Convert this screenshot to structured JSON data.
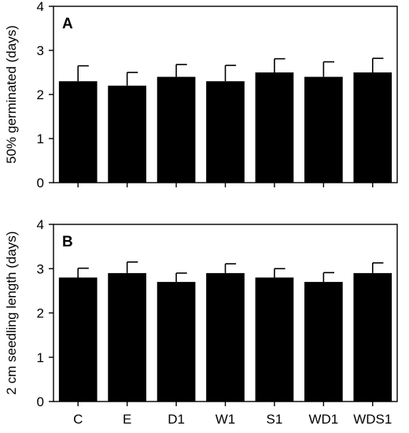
{
  "chart_data": [
    {
      "type": "bar",
      "panel_label": "A",
      "ylabel": "50% germinated (days)",
      "xlabel": "",
      "categories": [
        "C",
        "E",
        "D1",
        "W1",
        "S1",
        "WD1",
        "WDS1"
      ],
      "values": [
        2.3,
        2.2,
        2.4,
        2.3,
        2.5,
        2.4,
        2.5
      ],
      "error_plus": [
        0.35,
        0.3,
        0.28,
        0.36,
        0.31,
        0.34,
        0.32
      ],
      "ylim": [
        0,
        4
      ],
      "yticks": [
        "0",
        "1",
        "2",
        "3",
        "4"
      ],
      "show_xtick_labels": false,
      "bar_color": "#000000",
      "grid": false
    },
    {
      "type": "bar",
      "panel_label": "B",
      "ylabel": "2 cm seedling length (days)",
      "xlabel": "",
      "categories": [
        "C",
        "E",
        "D1",
        "W1",
        "S1",
        "WD1",
        "WDS1"
      ],
      "values": [
        2.8,
        2.9,
        2.7,
        2.9,
        2.8,
        2.7,
        2.9
      ],
      "error_plus": [
        0.21,
        0.25,
        0.2,
        0.21,
        0.2,
        0.21,
        0.23
      ],
      "ylim": [
        0,
        4
      ],
      "yticks": [
        "0",
        "1",
        "2",
        "3",
        "4"
      ],
      "show_xtick_labels": true,
      "bar_color": "#000000",
      "grid": false
    }
  ]
}
